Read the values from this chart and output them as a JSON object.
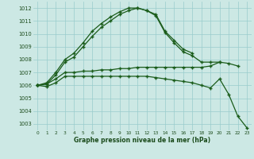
{
  "title": "Graphe pression niveau de la mer (hPa)",
  "bg_color": "#cce8e4",
  "grid_color": "#99cccc",
  "line_color": "#1a5c1a",
  "xlim": [
    -0.5,
    23.5
  ],
  "ylim": [
    1002.5,
    1012.5
  ],
  "yticks": [
    1003,
    1004,
    1005,
    1006,
    1007,
    1008,
    1009,
    1010,
    1011,
    1012
  ],
  "xticks": [
    0,
    1,
    2,
    3,
    4,
    5,
    6,
    7,
    8,
    9,
    10,
    11,
    12,
    13,
    14,
    15,
    16,
    17,
    18,
    19,
    20,
    21,
    22,
    23
  ],
  "line1_x": [
    0,
    1,
    2,
    3,
    4,
    5,
    6,
    7,
    8,
    9,
    10,
    11,
    12,
    13,
    14,
    15,
    16,
    17
  ],
  "line1_y": [
    1006.0,
    1006.2,
    1007.0,
    1008.0,
    1008.5,
    1009.3,
    1010.2,
    1010.8,
    1011.3,
    1011.7,
    1012.0,
    1012.0,
    1011.8,
    1011.5,
    1010.2,
    1009.5,
    1008.8,
    1008.5
  ],
  "line2_x": [
    0,
    1,
    2,
    3,
    4,
    5,
    6,
    7,
    8,
    9,
    10,
    11,
    12,
    13,
    14,
    15,
    16,
    17,
    18,
    19,
    20,
    21,
    22
  ],
  "line2_y": [
    1006.0,
    1006.1,
    1006.8,
    1007.8,
    1008.2,
    1009.0,
    1009.8,
    1010.5,
    1011.0,
    1011.5,
    1011.8,
    1012.0,
    1011.8,
    1011.4,
    1010.1,
    1009.3,
    1008.6,
    1008.3,
    1007.8,
    1007.8,
    1007.8,
    1007.7,
    1007.5
  ],
  "line3_x": [
    0,
    1,
    2,
    3,
    4,
    5,
    6,
    7,
    8,
    9,
    10,
    11,
    12,
    13,
    14,
    15,
    16,
    17,
    18,
    19,
    20
  ],
  "line3_y": [
    1006.0,
    1006.1,
    1006.5,
    1007.0,
    1007.0,
    1007.1,
    1007.1,
    1007.2,
    1007.2,
    1007.3,
    1007.3,
    1007.4,
    1007.4,
    1007.4,
    1007.4,
    1007.4,
    1007.4,
    1007.4,
    1007.4,
    1007.5,
    1007.8
  ],
  "line4_x": [
    0,
    1,
    2,
    3,
    4,
    5,
    6,
    7,
    8,
    9,
    10,
    11,
    12,
    13,
    14,
    15,
    16,
    17,
    18,
    19,
    20,
    21,
    22,
    23
  ],
  "line4_y": [
    1006.0,
    1005.9,
    1006.2,
    1006.7,
    1006.7,
    1006.7,
    1006.7,
    1006.7,
    1006.7,
    1006.7,
    1006.7,
    1006.7,
    1006.7,
    1006.6,
    1006.5,
    1006.4,
    1006.3,
    1006.2,
    1006.0,
    1005.8,
    1006.5,
    1005.3,
    1003.6,
    1002.7
  ]
}
